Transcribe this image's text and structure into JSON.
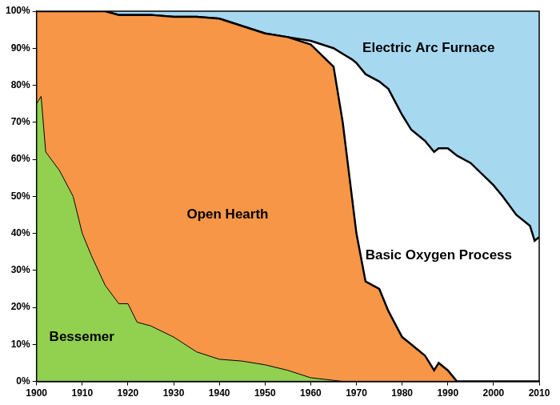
{
  "chart_data": {
    "type": "area",
    "stacked": true,
    "grid": false,
    "x": [
      1900,
      1901,
      1902,
      1905,
      1908,
      1910,
      1912,
      1915,
      1918,
      1920,
      1922,
      1925,
      1930,
      1935,
      1940,
      1945,
      1950,
      1955,
      1960,
      1965,
      1967,
      1969,
      1970,
      1972,
      1975,
      1977,
      1980,
      1982,
      1985,
      1987,
      1988,
      1990,
      1992,
      1995,
      2000,
      2002,
      2005,
      2008,
      2009,
      2010
    ],
    "xlim": [
      1900,
      2010
    ],
    "xticks": [
      1900,
      1910,
      1920,
      1930,
      1940,
      1950,
      1960,
      1970,
      1980,
      1990,
      2000,
      2010
    ],
    "ylim": [
      0,
      100
    ],
    "yticks": [
      {
        "value": 0,
        "label": "0%"
      },
      {
        "value": 10,
        "label": "10%"
      },
      {
        "value": 20,
        "label": "20%"
      },
      {
        "value": 30,
        "label": "30%"
      },
      {
        "value": 40,
        "label": "40%"
      },
      {
        "value": 50,
        "label": "50%"
      },
      {
        "value": 60,
        "label": "60%"
      },
      {
        "value": 70,
        "label": "70%"
      },
      {
        "value": 80,
        "label": "80%"
      },
      {
        "value": 90,
        "label": "90%"
      },
      {
        "value": 100,
        "label": "100%"
      }
    ],
    "series": [
      {
        "name": "Bessemer",
        "color": "#92d050",
        "values": [
          75,
          77,
          62,
          57,
          50,
          40,
          34,
          26,
          21,
          21,
          16,
          15,
          12,
          8,
          6,
          5.5,
          4.5,
          3,
          1,
          0.3,
          0,
          0,
          0,
          0,
          0,
          0,
          0,
          0,
          0,
          0,
          0,
          0,
          0,
          0,
          0,
          0,
          0,
          0,
          0,
          0
        ]
      },
      {
        "name": "Open Hearth",
        "color": "#f79646",
        "values": [
          25,
          23,
          38,
          43,
          50,
          60,
          66,
          74,
          78,
          78,
          83,
          84,
          86.5,
          90.5,
          92,
          90.5,
          89.5,
          90,
          90,
          84.7,
          70,
          50,
          40,
          27,
          25,
          19,
          12,
          10,
          7,
          3,
          5,
          3,
          0,
          0,
          0,
          0,
          0,
          0,
          0,
          0
        ]
      },
      {
        "name": "Basic Oxygen Process",
        "color": "#ffffff",
        "values": [
          0,
          0,
          0,
          0,
          0,
          0,
          0,
          0,
          0,
          0,
          0,
          0,
          0,
          0,
          0,
          0,
          0,
          0,
          1,
          5,
          18.5,
          37,
          46,
          56,
          56,
          60,
          60,
          58,
          58,
          59,
          58,
          60,
          61,
          59,
          53,
          50,
          45,
          42,
          38,
          39
        ]
      },
      {
        "name": "Electric Arc Furnace",
        "color": "#a6d8f0",
        "values": [
          0,
          0,
          0,
          0,
          0,
          0,
          0,
          0,
          1,
          1,
          1,
          1,
          1.5,
          1.5,
          2,
          4,
          6,
          7,
          8,
          10,
          11.5,
          13,
          14,
          17,
          19,
          21,
          28,
          32,
          35,
          38,
          37,
          37,
          39,
          41,
          47,
          50,
          55,
          58,
          62,
          61
        ]
      }
    ]
  }
}
